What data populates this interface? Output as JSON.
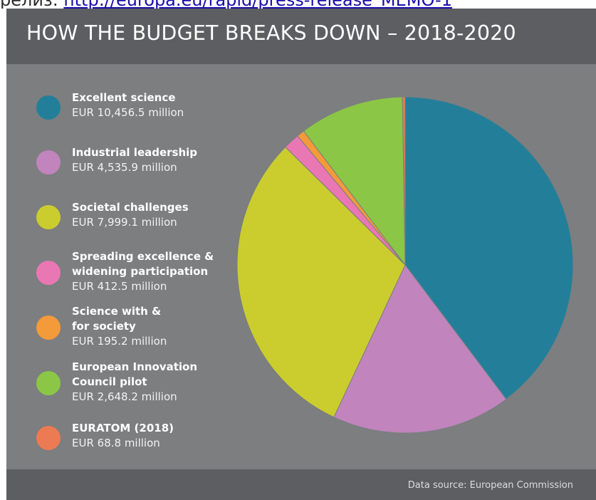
{
  "top_text": {
    "prefix": "релиз: ",
    "link": "http://europa.eu/rapid/press-release_MEMO-1"
  },
  "title": "HOW THE BUDGET BREAKS DOWN – 2018-2020",
  "footer": "Data source: European Commission",
  "chart_data": {
    "type": "pie",
    "title": "HOW THE BUDGET BREAKS DOWN – 2018-2020",
    "unit": "EUR million",
    "legend_position": "left",
    "slices": [
      {
        "name": "Excellent science",
        "value_label": "EUR 10,456.5 million",
        "value": 10456.5,
        "color": "#237f99"
      },
      {
        "name": "Industrial leadership",
        "value_label": "EUR 4,535.9 million",
        "value": 4535.9,
        "color": "#c184bd"
      },
      {
        "name": "Societal challenges",
        "value_label": "EUR 7,999.1 million",
        "value": 7999.1,
        "color": "#cbcd2e"
      },
      {
        "name": "Spreading excellence &\nwidening participation",
        "value_label": "EUR 412.5 million",
        "value": 412.5,
        "color": "#e977b4"
      },
      {
        "name": "Science with &\nfor society",
        "value_label": "EUR 195.2 million",
        "value": 195.2,
        "color": "#f39a3a"
      },
      {
        "name": "European Innovation\nCouncil pilot",
        "value_label": "EUR 2,648.2 million",
        "value": 2648.2,
        "color": "#8cc646"
      },
      {
        "name": "EURATOM (2018)",
        "value_label": "EUR 68.8 million",
        "value": 68.8,
        "color": "#ec7a52"
      }
    ]
  }
}
